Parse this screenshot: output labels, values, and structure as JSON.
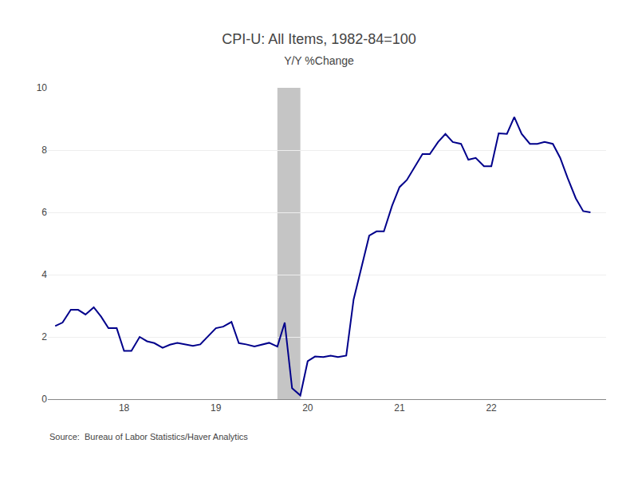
{
  "chart_data": {
    "type": "line",
    "title": "CPI-U: All Items, 1982-84=100",
    "subtitle": "Y/Y %Change",
    "annotations": [
      "Source:  Bureau of Labor Statistics/Haver Analytics"
    ],
    "color": "#00008B",
    "shade": {
      "x": [
        19.67,
        19.92
      ],
      "color": "#BBBBBB"
    },
    "xlim": [
      17.17,
      23.25
    ],
    "xticks": [
      18,
      19,
      20,
      21,
      22
    ],
    "ylim": [
      0,
      10
    ],
    "yticks": [
      0,
      2,
      4,
      6,
      8,
      10
    ],
    "grid": "y",
    "x": [
      17.25,
      17.33,
      17.42,
      17.5,
      17.58,
      17.67,
      17.75,
      17.83,
      17.92,
      18.0,
      18.08,
      18.17,
      18.25,
      18.33,
      18.42,
      18.5,
      18.58,
      18.67,
      18.75,
      18.83,
      18.92,
      19.0,
      19.08,
      19.17,
      19.25,
      19.33,
      19.42,
      19.5,
      19.58,
      19.67,
      19.75,
      19.83,
      19.92,
      20.0,
      20.08,
      20.17,
      20.25,
      20.33,
      20.42,
      20.5,
      20.58,
      20.67,
      20.75,
      20.83,
      20.92,
      21.0,
      21.08,
      21.17,
      21.25,
      21.33,
      21.42,
      21.5,
      21.58,
      21.67,
      21.75,
      21.83,
      21.92,
      22.0,
      22.08,
      22.17,
      22.25,
      22.33,
      22.42,
      22.5,
      22.58,
      22.67,
      22.75,
      22.83,
      22.92,
      23.0,
      23.08
    ],
    "values": [
      2.35,
      2.46,
      2.87,
      2.87,
      2.72,
      2.95,
      2.65,
      2.28,
      2.28,
      1.55,
      1.55,
      2.0,
      1.86,
      1.8,
      1.65,
      1.75,
      1.81,
      1.75,
      1.71,
      1.76,
      2.04,
      2.28,
      2.33,
      2.48,
      1.8,
      1.76,
      1.69,
      1.75,
      1.81,
      1.69,
      2.46,
      0.35,
      0.12,
      1.22,
      1.37,
      1.35,
      1.4,
      1.35,
      1.4,
      3.2,
      4.16,
      5.25,
      5.39,
      5.39,
      6.22,
      6.81,
      7.04,
      7.48,
      7.87,
      7.87,
      8.26,
      8.52,
      8.26,
      8.2,
      7.69,
      7.75,
      7.48,
      7.48,
      8.54,
      8.52,
      9.06,
      8.52,
      8.2,
      8.2,
      8.26,
      8.2,
      7.75,
      7.11,
      6.45,
      6.04,
      6.0
    ]
  }
}
